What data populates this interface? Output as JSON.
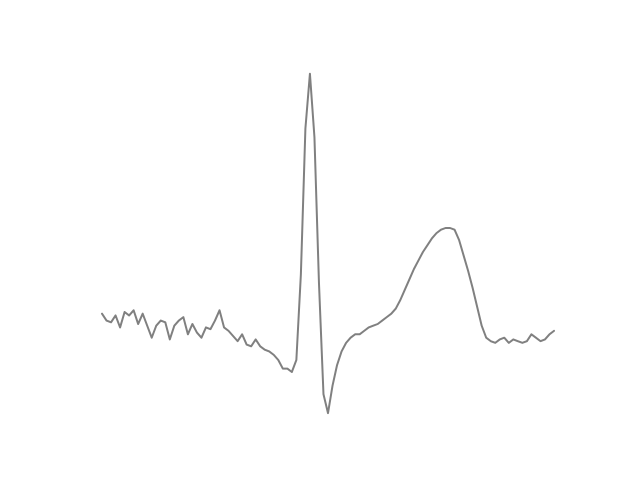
{
  "chart_data": {
    "type": "line",
    "title": "",
    "xlabel": "",
    "ylabel": "",
    "axes_visible": false,
    "grid": false,
    "legend": "none",
    "xlim": [
      0,
      1
    ],
    "ylim": [
      -0.6,
      1.5
    ],
    "series": [
      {
        "color": "#808080",
        "x": [
          0.0,
          0.01,
          0.02,
          0.03,
          0.04,
          0.05,
          0.06,
          0.07,
          0.08,
          0.09,
          0.1,
          0.11,
          0.12,
          0.13,
          0.14,
          0.15,
          0.16,
          0.17,
          0.18,
          0.19,
          0.2,
          0.21,
          0.22,
          0.23,
          0.24,
          0.25,
          0.26,
          0.27,
          0.28,
          0.29,
          0.3,
          0.31,
          0.32,
          0.33,
          0.34,
          0.35,
          0.36,
          0.37,
          0.38,
          0.39,
          0.4,
          0.41,
          0.42,
          0.43,
          0.44,
          0.45,
          0.46,
          0.47,
          0.48,
          0.49,
          0.5,
          0.51,
          0.52,
          0.53,
          0.54,
          0.55,
          0.56,
          0.57,
          0.58,
          0.59,
          0.6,
          0.61,
          0.62,
          0.63,
          0.64,
          0.65,
          0.66,
          0.67,
          0.68,
          0.69,
          0.7,
          0.71,
          0.72,
          0.73,
          0.74,
          0.75,
          0.76,
          0.77,
          0.78,
          0.79,
          0.8,
          0.81,
          0.82,
          0.83,
          0.84,
          0.85,
          0.86,
          0.87,
          0.88,
          0.89,
          0.9,
          0.91,
          0.92,
          0.93,
          0.94,
          0.95,
          0.96,
          0.97,
          0.98,
          0.99,
          1.0
        ],
        "y": [
          0.02,
          -0.02,
          -0.03,
          0.01,
          -0.06,
          0.03,
          0.01,
          0.04,
          -0.04,
          0.02,
          -0.05,
          -0.12,
          -0.05,
          -0.02,
          -0.03,
          -0.13,
          -0.05,
          -0.02,
          0.0,
          -0.1,
          -0.04,
          -0.09,
          -0.12,
          -0.06,
          -0.07,
          -0.02,
          0.04,
          -0.06,
          -0.08,
          -0.11,
          -0.14,
          -0.1,
          -0.16,
          -0.17,
          -0.13,
          -0.17,
          -0.19,
          -0.2,
          -0.22,
          -0.25,
          -0.3,
          -0.3,
          -0.32,
          -0.25,
          0.25,
          1.1,
          1.42,
          1.05,
          0.2,
          -0.45,
          -0.56,
          -0.4,
          -0.28,
          -0.2,
          -0.15,
          -0.12,
          -0.1,
          -0.1,
          -0.08,
          -0.06,
          -0.05,
          -0.04,
          -0.02,
          0.0,
          0.02,
          0.05,
          0.1,
          0.16,
          0.22,
          0.28,
          0.33,
          0.38,
          0.42,
          0.46,
          0.49,
          0.51,
          0.52,
          0.52,
          0.51,
          0.45,
          0.36,
          0.27,
          0.17,
          0.06,
          -0.05,
          -0.12,
          -0.14,
          -0.15,
          -0.13,
          -0.12,
          -0.15,
          -0.13,
          -0.14,
          -0.15,
          -0.14,
          -0.1,
          -0.12,
          -0.14,
          -0.13,
          -0.1,
          -0.08
        ]
      }
    ]
  }
}
